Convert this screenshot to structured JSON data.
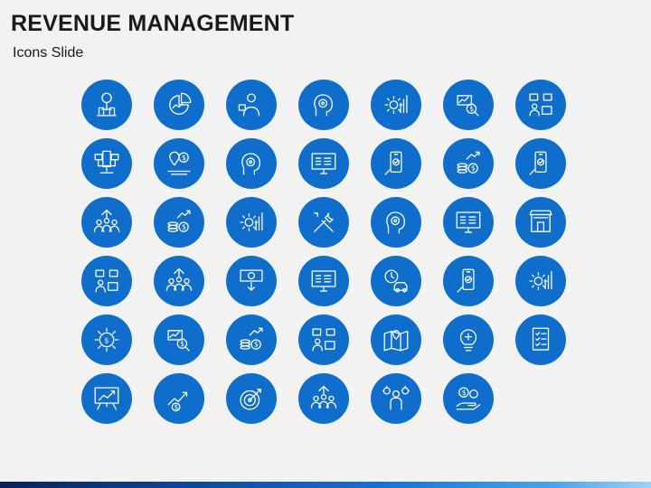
{
  "header": {
    "title": "REVENUE MANAGEMENT",
    "subtitle": "Icons Slide"
  },
  "theme": {
    "accent": "#0f6ecb",
    "background": "#f2f2f2",
    "icon_stroke": "#ffffff"
  },
  "icons": [
    {
      "name": "money-tree-icon",
      "symbol": "tree"
    },
    {
      "name": "pie-chart-analytics-icon",
      "symbol": "pie"
    },
    {
      "name": "businesswoman-presenter-icon",
      "symbol": "person"
    },
    {
      "name": "head-gear-mind-icon",
      "symbol": "head"
    },
    {
      "name": "gear-growth-chart-icon",
      "symbol": "gear"
    },
    {
      "name": "money-analysis-magnifier-icon",
      "symbol": "magnifier"
    },
    {
      "name": "warehouse-boxes-worker-icon",
      "symbol": "boxes"
    },
    {
      "name": "network-computers-icon",
      "symbol": "network"
    },
    {
      "name": "location-coin-money-icon",
      "symbol": "pin"
    },
    {
      "name": "head-coin-thinking-icon",
      "symbol": "head"
    },
    {
      "name": "monitor-checklist-icon",
      "symbol": "monitor"
    },
    {
      "name": "mobile-hand-tap-icon",
      "symbol": "phone"
    },
    {
      "name": "coins-growth-arrow-icon",
      "symbol": "coins"
    },
    {
      "name": "mobile-payment-transfer-icon",
      "symbol": "phone"
    },
    {
      "name": "team-growth-arrows-icon",
      "symbol": "people"
    },
    {
      "name": "list-coins-growth-icon",
      "symbol": "coins"
    },
    {
      "name": "gear-hierarchy-icon",
      "symbol": "gear"
    },
    {
      "name": "wrench-screwdriver-tools-icon",
      "symbol": "tools"
    },
    {
      "name": "head-gear-process-icon",
      "symbol": "head"
    },
    {
      "name": "monitor-email-icon",
      "symbol": "monitor"
    },
    {
      "name": "shop-storefront-icon",
      "symbol": "shop"
    },
    {
      "name": "shelves-boxes-worker-icon",
      "symbol": "boxes"
    },
    {
      "name": "presentation-audience-icon",
      "symbol": "people"
    },
    {
      "name": "cash-download-icon",
      "symbol": "cash"
    },
    {
      "name": "monitor-image-icon",
      "symbol": "monitor"
    },
    {
      "name": "clock-car-delivery-icon",
      "symbol": "clock"
    },
    {
      "name": "mobile-support-user-icon",
      "symbol": "phone"
    },
    {
      "name": "gear-chart-settings-icon",
      "symbol": "gear"
    },
    {
      "name": "gear-dollar-icon",
      "symbol": "gear-dollar"
    },
    {
      "name": "chart-coin-magnifier-icon",
      "symbol": "magnifier"
    },
    {
      "name": "coins-arrow-growth-icon",
      "symbol": "coins"
    },
    {
      "name": "delivery-boxes-worker-icon",
      "symbol": "boxes"
    },
    {
      "name": "map-location-icon",
      "symbol": "map"
    },
    {
      "name": "light-bulb-idea-icon",
      "symbol": "bulb"
    },
    {
      "name": "checklist-document-icon",
      "symbol": "checklist"
    },
    {
      "name": "presentation-board-chart-icon",
      "symbol": "board"
    },
    {
      "name": "dollar-growth-arrow-icon",
      "symbol": "dollar-arrow"
    },
    {
      "name": "target-arrow-icon",
      "symbol": "target"
    },
    {
      "name": "team-meeting-icon",
      "symbol": "people"
    },
    {
      "name": "businessman-gears-icon",
      "symbol": "person-gears"
    },
    {
      "name": "hands-money-coin-icon",
      "symbol": "hands-coin"
    }
  ]
}
